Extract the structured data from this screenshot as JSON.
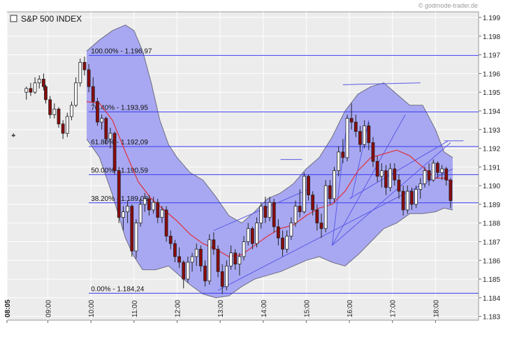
{
  "watermark": "© godmode-trader.de",
  "chart_data": {
    "type": "candlestick",
    "title": "S&P 500 INDEX",
    "ylim": [
      1.1828,
      1.1993
    ],
    "y_ticks": [
      1.183,
      1.184,
      1.185,
      1.186,
      1.187,
      1.188,
      1.189,
      1.19,
      1.191,
      1.192,
      1.193,
      1.194,
      1.195,
      1.196,
      1.197,
      1.198,
      1.199
    ],
    "y_tick_labels": [
      "1.183",
      "1.184",
      "1.185",
      "1.186",
      "1.187",
      "1.188",
      "1.189",
      "1.190",
      "1.191",
      "1.192",
      "1.193",
      "1.194",
      "1.195",
      "1.196",
      "1.197",
      "1.198",
      "1.199"
    ],
    "x_range_hours": [
      8.05,
      19.0
    ],
    "x_ticks": [
      {
        "t": 8.05,
        "label": "08:05",
        "bold": true
      },
      {
        "t": 9,
        "label": "09:00"
      },
      {
        "t": 10,
        "label": "10:00"
      },
      {
        "t": 11,
        "label": "11:00"
      },
      {
        "t": 12,
        "label": "12:00"
      },
      {
        "t": 13,
        "label": "13:00"
      },
      {
        "t": 14,
        "label": "14:00"
      },
      {
        "t": 15,
        "label": "15:00"
      },
      {
        "t": 16,
        "label": "16:00"
      },
      {
        "t": 17,
        "label": "17:00"
      },
      {
        "t": 18,
        "label": "18:00"
      }
    ],
    "fib_levels": [
      {
        "value": 1.19697,
        "label": "100.00% - 1.196,97"
      },
      {
        "value": 1.19395,
        "label": "76.40% - 1.193,95"
      },
      {
        "value": 1.19209,
        "label": "61.80% - 1.192,09"
      },
      {
        "value": 1.19059,
        "label": "50.00% - 1.190,59"
      },
      {
        "value": 1.18908,
        "label": "38.20% - 1.189,08"
      },
      {
        "value": 1.18424,
        "label": "0.00% - 1.184,24"
      }
    ],
    "colors": {
      "plot_bg": "#ececec",
      "grid": "#ffffff",
      "band_fill": "#a8a8f2",
      "band_edge": "#6d6d80",
      "fib_line": "#3a3af0",
      "trend_line": "#5a5ae8",
      "moving_average": "#e0303a",
      "candle_up": "#ffffff",
      "candle_down": "#8b0a0a",
      "candle_outline": "#222222"
    },
    "candles": [
      [
        8.2,
        1.1927,
        1.1928,
        1.1926,
        1.1927
      ],
      [
        8.5,
        1.195,
        1.1953,
        1.1946,
        1.1952
      ],
      [
        8.6,
        1.1952,
        1.1955,
        1.1948,
        1.195
      ],
      [
        8.7,
        1.195,
        1.1958,
        1.1949,
        1.1955
      ],
      [
        8.8,
        1.1955,
        1.1959,
        1.1952,
        1.1957
      ],
      [
        8.9,
        1.1957,
        1.196,
        1.1951,
        1.1953
      ],
      [
        8.95,
        1.1953,
        1.1954,
        1.1944,
        1.1946
      ],
      [
        9.05,
        1.1946,
        1.1948,
        1.1936,
        1.1938
      ],
      [
        9.15,
        1.1938,
        1.1944,
        1.1936,
        1.1941
      ],
      [
        9.25,
        1.1941,
        1.1942,
        1.1931,
        1.1933
      ],
      [
        9.35,
        1.1933,
        1.1935,
        1.1925,
        1.1928
      ],
      [
        9.45,
        1.1928,
        1.1939,
        1.1926,
        1.1937
      ],
      [
        9.55,
        1.1937,
        1.1945,
        1.1935,
        1.1943
      ],
      [
        9.65,
        1.1943,
        1.1958,
        1.1942,
        1.1955
      ],
      [
        9.75,
        1.1955,
        1.1968,
        1.1953,
        1.1966
      ],
      [
        9.85,
        1.1966,
        1.1969,
        1.1959,
        1.1962
      ],
      [
        9.95,
        1.1962,
        1.1965,
        1.195,
        1.1953
      ],
      [
        10.05,
        1.1953,
        1.1958,
        1.1943,
        1.1945
      ],
      [
        10.15,
        1.1945,
        1.1947,
        1.1932,
        1.1934
      ],
      [
        10.25,
        1.1934,
        1.1938,
        1.193,
        1.1936
      ],
      [
        10.35,
        1.1936,
        1.1937,
        1.1922,
        1.1925
      ],
      [
        10.45,
        1.1925,
        1.1931,
        1.192,
        1.1928
      ],
      [
        10.55,
        1.1928,
        1.1929,
        1.1906,
        1.1908
      ],
      [
        10.65,
        1.1908,
        1.191,
        1.188,
        1.1883
      ],
      [
        10.75,
        1.1883,
        1.1889,
        1.1876,
        1.1886
      ],
      [
        10.85,
        1.1886,
        1.1892,
        1.188,
        1.1889
      ],
      [
        10.95,
        1.1889,
        1.189,
        1.1862,
        1.1865
      ],
      [
        11.05,
        1.1865,
        1.1882,
        1.1861,
        1.188
      ],
      [
        11.15,
        1.188,
        1.1893,
        1.1878,
        1.189
      ],
      [
        11.25,
        1.189,
        1.1896,
        1.1886,
        1.1893
      ],
      [
        11.35,
        1.1893,
        1.1895,
        1.1884,
        1.1887
      ],
      [
        11.45,
        1.1887,
        1.1894,
        1.1885,
        1.1891
      ],
      [
        11.55,
        1.1891,
        1.1893,
        1.188,
        1.1883
      ],
      [
        11.65,
        1.1883,
        1.1889,
        1.188,
        1.1887
      ],
      [
        11.75,
        1.1887,
        1.1889,
        1.187,
        1.1873
      ],
      [
        11.85,
        1.1873,
        1.1876,
        1.1866,
        1.1869
      ],
      [
        11.95,
        1.1869,
        1.1871,
        1.1859,
        1.1862
      ],
      [
        12.05,
        1.1862,
        1.1867,
        1.1856,
        1.1859
      ],
      [
        12.15,
        1.1859,
        1.186,
        1.1845,
        1.185
      ],
      [
        12.25,
        1.185,
        1.1862,
        1.1848,
        1.1859
      ],
      [
        12.35,
        1.1859,
        1.1864,
        1.1854,
        1.1862
      ],
      [
        12.45,
        1.1862,
        1.1869,
        1.1857,
        1.1866
      ],
      [
        12.55,
        1.1866,
        1.1868,
        1.1854,
        1.1857
      ],
      [
        12.65,
        1.1857,
        1.186,
        1.1846,
        1.1849
      ],
      [
        12.75,
        1.1849,
        1.1874,
        1.1847,
        1.1871
      ],
      [
        12.85,
        1.1871,
        1.1875,
        1.1863,
        1.1866
      ],
      [
        12.95,
        1.1866,
        1.1868,
        1.1851,
        1.1854
      ],
      [
        13.05,
        1.1854,
        1.1858,
        1.1842,
        1.1846
      ],
      [
        13.15,
        1.1846,
        1.186,
        1.1844,
        1.1857
      ],
      [
        13.25,
        1.1857,
        1.1868,
        1.1855,
        1.1864
      ],
      [
        13.35,
        1.1864,
        1.1866,
        1.1855,
        1.1858
      ],
      [
        13.45,
        1.1858,
        1.1864,
        1.1852,
        1.1862
      ],
      [
        13.55,
        1.1862,
        1.1873,
        1.186,
        1.187
      ],
      [
        13.65,
        1.187,
        1.188,
        1.1868,
        1.1877
      ],
      [
        13.75,
        1.1877,
        1.1878,
        1.1866,
        1.1869
      ],
      [
        13.85,
        1.1869,
        1.1883,
        1.1867,
        1.188
      ],
      [
        13.95,
        1.188,
        1.1891,
        1.1877,
        1.1889
      ],
      [
        14.05,
        1.1889,
        1.1894,
        1.188,
        1.1883
      ],
      [
        14.15,
        1.1883,
        1.1894,
        1.1881,
        1.1891
      ],
      [
        14.25,
        1.1891,
        1.1893,
        1.1875,
        1.1878
      ],
      [
        14.35,
        1.1878,
        1.1882,
        1.1868,
        1.1872
      ],
      [
        14.45,
        1.1872,
        1.1876,
        1.1862,
        1.1866
      ],
      [
        14.55,
        1.1866,
        1.1876,
        1.1864,
        1.1873
      ],
      [
        14.65,
        1.1873,
        1.1883,
        1.1871,
        1.188
      ],
      [
        14.75,
        1.188,
        1.1892,
        1.1878,
        1.1889
      ],
      [
        14.85,
        1.1889,
        1.1898,
        1.1883,
        1.1886
      ],
      [
        14.95,
        1.1886,
        1.1907,
        1.1885,
        1.1905
      ],
      [
        15.05,
        1.1905,
        1.1906,
        1.1892,
        1.1895
      ],
      [
        15.15,
        1.1895,
        1.1897,
        1.1884,
        1.1887
      ],
      [
        15.25,
        1.1887,
        1.189,
        1.1876,
        1.188
      ],
      [
        15.35,
        1.188,
        1.1885,
        1.1872,
        1.1877
      ],
      [
        15.45,
        1.1877,
        1.1903,
        1.1875,
        1.19
      ],
      [
        15.55,
        1.19,
        1.1903,
        1.189,
        1.1893
      ],
      [
        15.65,
        1.1893,
        1.191,
        1.1891,
        1.1908
      ],
      [
        15.75,
        1.1908,
        1.1921,
        1.1905,
        1.1918
      ],
      [
        15.85,
        1.1918,
        1.1925,
        1.1912,
        1.1915
      ],
      [
        15.95,
        1.1915,
        1.1938,
        1.1913,
        1.1936
      ],
      [
        16.05,
        1.1936,
        1.1944,
        1.193,
        1.1934
      ],
      [
        16.15,
        1.1934,
        1.1938,
        1.1926,
        1.1929
      ],
      [
        16.25,
        1.1929,
        1.1932,
        1.1918,
        1.1922
      ],
      [
        16.35,
        1.1922,
        1.1935,
        1.192,
        1.1932
      ],
      [
        16.45,
        1.1932,
        1.1934,
        1.1919,
        1.1923
      ],
      [
        16.55,
        1.1923,
        1.1926,
        1.191,
        1.1913
      ],
      [
        16.65,
        1.1913,
        1.1916,
        1.1902,
        1.1905
      ],
      [
        16.75,
        1.1905,
        1.1912,
        1.1899,
        1.1908
      ],
      [
        16.85,
        1.1908,
        1.1911,
        1.1895,
        1.1899
      ],
      [
        16.95,
        1.1899,
        1.1912,
        1.1897,
        1.1909
      ],
      [
        17.05,
        1.1909,
        1.1912,
        1.19,
        1.1903
      ],
      [
        17.15,
        1.1903,
        1.1906,
        1.1893,
        1.1897
      ],
      [
        17.25,
        1.1897,
        1.19,
        1.1884,
        1.1887
      ],
      [
        17.35,
        1.1887,
        1.19,
        1.1885,
        1.1897
      ],
      [
        17.45,
        1.1897,
        1.1899,
        1.1887,
        1.189
      ],
      [
        17.55,
        1.189,
        1.19,
        1.1888,
        1.1898
      ],
      [
        17.65,
        1.1898,
        1.1904,
        1.1893,
        1.1901
      ],
      [
        17.75,
        1.1901,
        1.191,
        1.1899,
        1.1908
      ],
      [
        17.85,
        1.1908,
        1.1912,
        1.19,
        1.1903
      ],
      [
        17.95,
        1.1903,
        1.1914,
        1.1902,
        1.1912
      ],
      [
        18.05,
        1.1912,
        1.1913,
        1.1904,
        1.1907
      ],
      [
        18.15,
        1.1907,
        1.1911,
        1.1903,
        1.1909
      ],
      [
        18.25,
        1.1909,
        1.191,
        1.19,
        1.1903
      ],
      [
        18.35,
        1.1903,
        1.1904,
        1.1888,
        1.1892
      ]
    ],
    "moving_average": [
      [
        9.9,
        1.1945
      ],
      [
        10.2,
        1.1944
      ],
      [
        10.5,
        1.1935
      ],
      [
        10.8,
        1.1918
      ],
      [
        11.1,
        1.1902
      ],
      [
        11.4,
        1.1893
      ],
      [
        11.7,
        1.1887
      ],
      [
        12.0,
        1.1881
      ],
      [
        12.3,
        1.1874
      ],
      [
        12.6,
        1.1869
      ],
      [
        12.9,
        1.1866
      ],
      [
        13.2,
        1.1862
      ],
      [
        13.5,
        1.1863
      ],
      [
        13.8,
        1.1868
      ],
      [
        14.1,
        1.1873
      ],
      [
        14.4,
        1.1877
      ],
      [
        14.7,
        1.1879
      ],
      [
        15.0,
        1.1884
      ],
      [
        15.3,
        1.1888
      ],
      [
        15.6,
        1.189
      ],
      [
        15.9,
        1.1897
      ],
      [
        16.2,
        1.1908
      ],
      [
        16.5,
        1.1915
      ],
      [
        16.8,
        1.1917
      ],
      [
        17.1,
        1.1919
      ],
      [
        17.4,
        1.1916
      ],
      [
        17.7,
        1.191
      ],
      [
        18.0,
        1.1904
      ],
      [
        18.2,
        1.1904
      ],
      [
        18.4,
        1.1902
      ]
    ],
    "bollinger_upper": [
      [
        9.9,
        1.1972
      ],
      [
        10.2,
        1.1978
      ],
      [
        10.5,
        1.1983
      ],
      [
        10.8,
        1.1986
      ],
      [
        11.0,
        1.1983
      ],
      [
        11.2,
        1.1972
      ],
      [
        11.4,
        1.1955
      ],
      [
        11.6,
        1.1935
      ],
      [
        11.8,
        1.1922
      ],
      [
        12.0,
        1.1915
      ],
      [
        12.3,
        1.1907
      ],
      [
        12.6,
        1.1903
      ],
      [
        12.9,
        1.1894
      ],
      [
        13.2,
        1.1884
      ],
      [
        13.5,
        1.188
      ],
      [
        13.8,
        1.1886
      ],
      [
        14.1,
        1.1893
      ],
      [
        14.4,
        1.1896
      ],
      [
        14.7,
        1.1901
      ],
      [
        15.0,
        1.1909
      ],
      [
        15.3,
        1.1915
      ],
      [
        15.6,
        1.1926
      ],
      [
        15.9,
        1.194
      ],
      [
        16.2,
        1.1949
      ],
      [
        16.5,
        1.1953
      ],
      [
        16.8,
        1.1955
      ],
      [
        17.1,
        1.1949
      ],
      [
        17.4,
        1.1943
      ],
      [
        17.7,
        1.1943
      ],
      [
        18.0,
        1.193
      ],
      [
        18.2,
        1.1918
      ],
      [
        18.4,
        1.1915
      ]
    ],
    "bollinger_lower": [
      [
        9.9,
        1.1925
      ],
      [
        10.2,
        1.1915
      ],
      [
        10.5,
        1.1895
      ],
      [
        10.8,
        1.1872
      ],
      [
        11.0,
        1.1862
      ],
      [
        11.2,
        1.1855
      ],
      [
        11.5,
        1.1855
      ],
      [
        11.8,
        1.1857
      ],
      [
        12.0,
        1.1853
      ],
      [
        12.3,
        1.1847
      ],
      [
        12.6,
        1.1842
      ],
      [
        12.9,
        1.184
      ],
      [
        13.2,
        1.1841
      ],
      [
        13.5,
        1.1846
      ],
      [
        13.8,
        1.185
      ],
      [
        14.1,
        1.1852
      ],
      [
        14.4,
        1.1854
      ],
      [
        14.7,
        1.1857
      ],
      [
        15.0,
        1.186
      ],
      [
        15.3,
        1.1862
      ],
      [
        15.6,
        1.1859
      ],
      [
        15.9,
        1.1857
      ],
      [
        16.2,
        1.1863
      ],
      [
        16.5,
        1.187
      ],
      [
        16.8,
        1.1877
      ],
      [
        17.1,
        1.188
      ],
      [
        17.4,
        1.1885
      ],
      [
        17.7,
        1.1885
      ],
      [
        18.0,
        1.1886
      ],
      [
        18.2,
        1.1888
      ],
      [
        18.4,
        1.1887
      ]
    ],
    "trend_lines": [
      [
        [
          12.85,
          1.1876
        ],
        [
          15.05,
          1.1898
        ]
      ],
      [
        [
          12.95,
          1.1844
        ],
        [
          18.4,
          1.1909
        ]
      ],
      [
        [
          15.6,
          1.1868
        ],
        [
          18.35,
          1.1923
        ]
      ],
      [
        [
          15.6,
          1.1868
        ],
        [
          17.3,
          1.1938
        ]
      ],
      [
        [
          15.6,
          1.1868
        ],
        [
          15.95,
          1.1935
        ]
      ],
      [
        [
          16.05,
          1.1893
        ],
        [
          16.45,
          1.1935
        ]
      ],
      [
        [
          16.0,
          1.1893
        ],
        [
          18.3,
          1.1924
        ]
      ],
      [
        [
          15.85,
          1.1954
        ],
        [
          17.65,
          1.1955
        ]
      ],
      [
        [
          14.4,
          1.1914
        ],
        [
          14.9,
          1.1914
        ]
      ],
      [
        [
          18.2,
          1.1924
        ],
        [
          18.65,
          1.1924
        ]
      ]
    ]
  }
}
